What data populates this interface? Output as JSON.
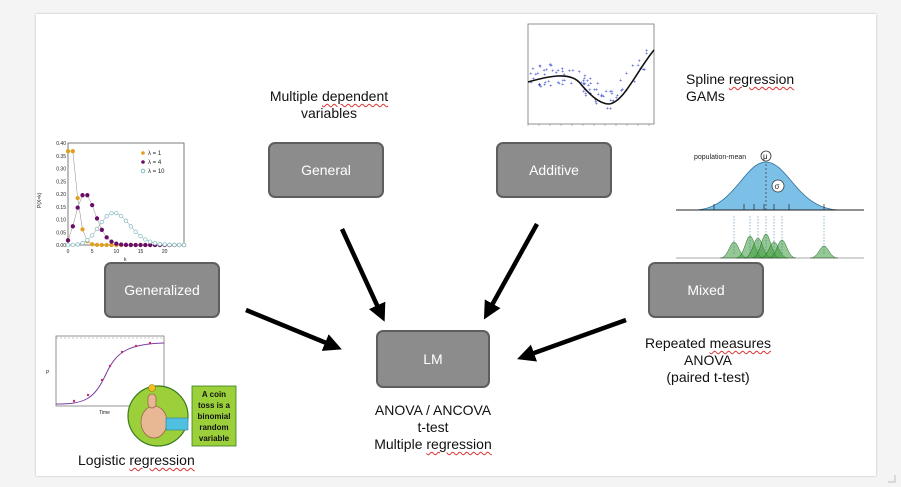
{
  "boxes": {
    "general": "General",
    "additive": "Additive",
    "generalized": "Generalized",
    "mixed": "Mixed",
    "lm": "LM"
  },
  "captions": {
    "general_line1_plain": "Multiple ",
    "general_line1_marked": "dependent",
    "general_line2": "variables",
    "additive_line1_plain": "Spline ",
    "additive_line1_marked": "regression",
    "additive_line2": "GAMs",
    "mixed_line1_plain": "Repeated ",
    "mixed_line1_marked": "measures",
    "mixed_line2": "ANOVA",
    "mixed_line3": "(paired t-test)",
    "lm_line1": "ANOVA / ANCOVA",
    "lm_line2": "t-test",
    "lm_line3_plain": "Multiple ",
    "lm_line3_marked": "regression",
    "generalized_plain": "Logistic ",
    "generalized_marked": "regression"
  },
  "poisson_plot": {
    "y_axis_label": "P(X=k)",
    "x_axis_label": "k",
    "y_ticks": [
      "0.00",
      "0.05",
      "0.10",
      "0.15",
      "0.20",
      "0.25",
      "0.30",
      "0.35",
      "0.40"
    ],
    "x_ticks": [
      "0",
      "5",
      "10",
      "15",
      "20"
    ],
    "legend": [
      "λ = 1",
      "λ = 4",
      "λ = 10"
    ],
    "colors": [
      "#e0a020",
      "#6a0d6a",
      "#7fbcc4"
    ]
  },
  "mixed_plot": {
    "label": "population-mean",
    "mu_symbol": "μ",
    "sigma_symbol": "σ",
    "curve_color": "#7cc0e8",
    "group_color": "#3c9a3c"
  },
  "logistic_plot": {
    "y_label": "P",
    "x_label": "Time",
    "callout": "A coin toss is a binomial random variable",
    "curve_color": "#7a3ca0",
    "callout_color": "#9bd03a"
  },
  "spline_plot": {
    "point_color": "#3344cc",
    "curve_color": "#111111"
  }
}
